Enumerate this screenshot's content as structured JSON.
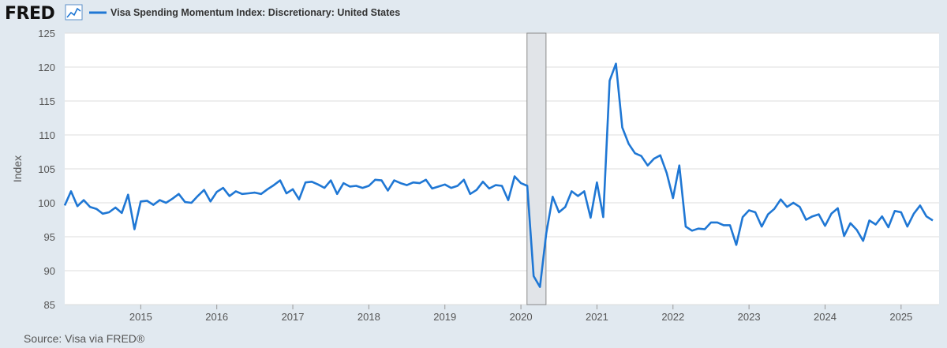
{
  "header": {
    "logo": "FRED",
    "logo_icon": "chart-line-icon",
    "legend_label": "Visa Spending Momentum Index: Discretionary: United States"
  },
  "footer": {
    "source": "Source: Visa via FRED®"
  },
  "colors": {
    "line": "#1f77d4",
    "background": "#e1e9f0",
    "plot": "#ffffff",
    "grid": "#dddddd",
    "recession": "#e1e4e8"
  },
  "chart_data": {
    "type": "line",
    "title": "Visa Spending Momentum Index: Discretionary: United States",
    "xlabel": "",
    "ylabel": "Index",
    "ylim": [
      85,
      125
    ],
    "yticks": [
      85,
      90,
      95,
      100,
      105,
      110,
      115,
      120,
      125
    ],
    "xlim": [
      2014.0,
      2025.5
    ],
    "xticks": [
      "2015",
      "2016",
      "2017",
      "2018",
      "2019",
      "2020",
      "2021",
      "2022",
      "2023",
      "2024",
      "2025"
    ],
    "grid": true,
    "recession": {
      "start": 2020.08,
      "end": 2020.33
    },
    "series": [
      {
        "name": "Visa Spending Momentum Index: Discretionary: United States",
        "x": [
          2014.0,
          2014.083,
          2014.167,
          2014.25,
          2014.333,
          2014.417,
          2014.5,
          2014.583,
          2014.667,
          2014.75,
          2014.833,
          2014.917,
          2015.0,
          2015.083,
          2015.167,
          2015.25,
          2015.333,
          2015.417,
          2015.5,
          2015.583,
          2015.667,
          2015.75,
          2015.833,
          2015.917,
          2016.0,
          2016.083,
          2016.167,
          2016.25,
          2016.333,
          2016.417,
          2016.5,
          2016.583,
          2016.667,
          2016.75,
          2016.833,
          2016.917,
          2017.0,
          2017.083,
          2017.167,
          2017.25,
          2017.333,
          2017.417,
          2017.5,
          2017.583,
          2017.667,
          2017.75,
          2017.833,
          2017.917,
          2018.0,
          2018.083,
          2018.167,
          2018.25,
          2018.333,
          2018.417,
          2018.5,
          2018.583,
          2018.667,
          2018.75,
          2018.833,
          2018.917,
          2019.0,
          2019.083,
          2019.167,
          2019.25,
          2019.333,
          2019.417,
          2019.5,
          2019.583,
          2019.667,
          2019.75,
          2019.833,
          2019.917,
          2020.0,
          2020.083,
          2020.167,
          2020.25,
          2020.333,
          2020.417,
          2020.5,
          2020.583,
          2020.667,
          2020.75,
          2020.833,
          2020.917,
          2021.0,
          2021.083,
          2021.167,
          2021.25,
          2021.333,
          2021.417,
          2021.5,
          2021.583,
          2021.667,
          2021.75,
          2021.833,
          2021.917,
          2022.0,
          2022.083,
          2022.167,
          2022.25,
          2022.333,
          2022.417,
          2022.5,
          2022.583,
          2022.667,
          2022.75,
          2022.833,
          2022.917,
          2023.0,
          2023.083,
          2023.167,
          2023.25,
          2023.333,
          2023.417,
          2023.5,
          2023.583,
          2023.667,
          2023.75,
          2023.833,
          2023.917,
          2024.0,
          2024.083,
          2024.167,
          2024.25,
          2024.333,
          2024.417,
          2024.5,
          2024.583,
          2024.667,
          2024.75,
          2024.833,
          2024.917,
          2025.0,
          2025.083,
          2025.167,
          2025.25,
          2025.333,
          2025.417
        ],
        "values": [
          99.6,
          101.7,
          99.5,
          100.4,
          99.4,
          99.1,
          98.4,
          98.6,
          99.3,
          98.5,
          101.2,
          96.1,
          100.2,
          100.3,
          99.7,
          100.4,
          100.0,
          100.6,
          101.3,
          100.1,
          100.0,
          101.0,
          101.9,
          100.2,
          101.6,
          102.2,
          101.0,
          101.7,
          101.3,
          101.4,
          101.5,
          101.3,
          102.0,
          102.6,
          103.3,
          101.4,
          102.0,
          100.5,
          103.0,
          103.1,
          102.7,
          102.2,
          103.3,
          101.3,
          102.9,
          102.4,
          102.5,
          102.2,
          102.5,
          103.4,
          103.3,
          101.8,
          103.3,
          102.9,
          102.6,
          103.0,
          102.9,
          103.4,
          102.1,
          102.4,
          102.7,
          102.2,
          102.5,
          103.4,
          101.3,
          101.9,
          103.1,
          102.1,
          102.6,
          102.5,
          100.4,
          103.9,
          102.9,
          102.5,
          89.2,
          87.6,
          95.5,
          100.9,
          98.6,
          99.4,
          101.7,
          101.0,
          101.7,
          97.8,
          103.0,
          97.9,
          118.0,
          120.5,
          111.1,
          108.7,
          107.3,
          106.9,
          105.5,
          106.5,
          107.0,
          104.4,
          100.7,
          105.5,
          96.5,
          95.9,
          96.2,
          96.1,
          97.1,
          97.1,
          96.7,
          96.7,
          93.8,
          97.9,
          98.9,
          98.6,
          96.5,
          98.3,
          99.1,
          100.5,
          99.4,
          100.0,
          99.4,
          97.5,
          98.0,
          98.3,
          96.6,
          98.4,
          99.2,
          95.1,
          97.0,
          96.0,
          94.4,
          97.4,
          96.8,
          98.0,
          96.4,
          98.8,
          98.6,
          96.5,
          98.4,
          99.6,
          98.0,
          97.4
        ]
      }
    ]
  }
}
